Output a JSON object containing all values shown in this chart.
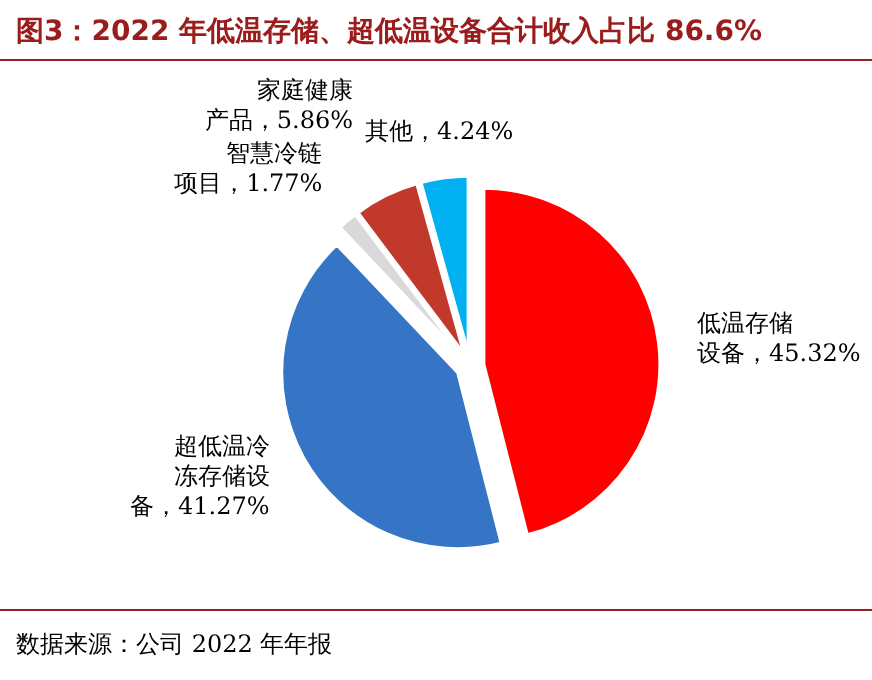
{
  "chart_data": {
    "type": "pie",
    "title": "图3：2022 年低温存储、超低温设备合计收入占比 86.6%",
    "categories": [
      "低温存储设备",
      "超低温冷冻存储设备",
      "智慧冷链项目",
      "家庭健康产品",
      "其他"
    ],
    "values": [
      45.32,
      41.27,
      1.77,
      5.86,
      4.24
    ],
    "value_labels": [
      "45.32%",
      "41.27%",
      "1.77%",
      "5.86%",
      "4.24%"
    ],
    "colors": [
      "#ff0000",
      "#3674c6",
      "#d9d9d9",
      "#c0392b",
      "#00b0f0"
    ],
    "annotations": [
      "数据来源：公司 2022 年年报"
    ]
  }
}
